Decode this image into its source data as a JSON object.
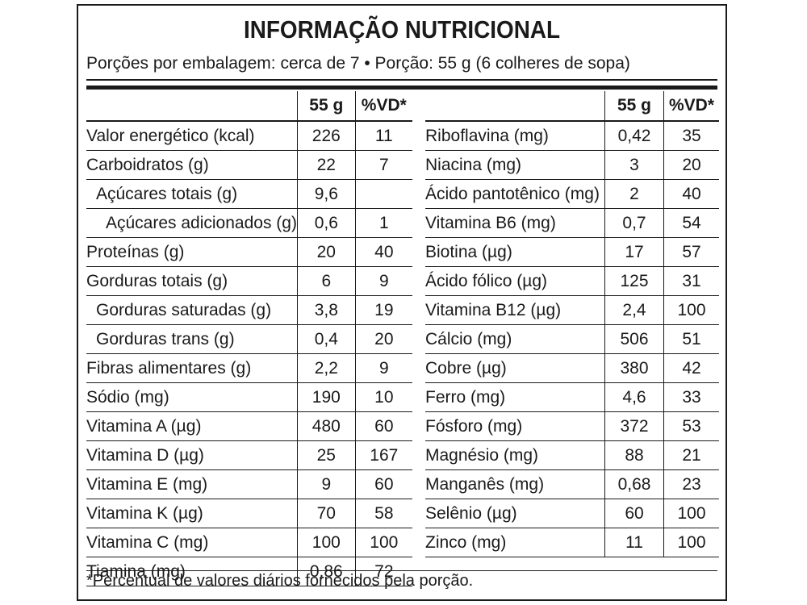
{
  "title": "INFORMAÇÃO NUTRICIONAL",
  "serving": "Porções por embalagem: cerca de 7 • Porção: 55 g (6 colheres de sopa)",
  "columns": {
    "amount": "55 g",
    "dv": "%VD*"
  },
  "left_rows": [
    {
      "name": "Valor energético (kcal)",
      "amount": "226",
      "dv": "11",
      "indent": 0
    },
    {
      "name": "Carboidratos (g)",
      "amount": "22",
      "dv": "7",
      "indent": 0
    },
    {
      "name": "Açúcares totais (g)",
      "amount": "9,6",
      "dv": "",
      "indent": 1
    },
    {
      "name": "Açúcares adicionados (g)",
      "amount": "0,6",
      "dv": "1",
      "indent": 2
    },
    {
      "name": "Proteínas (g)",
      "amount": "20",
      "dv": "40",
      "indent": 0
    },
    {
      "name": "Gorduras totais (g)",
      "amount": "6",
      "dv": "9",
      "indent": 0
    },
    {
      "name": "Gorduras saturadas (g)",
      "amount": "3,8",
      "dv": "19",
      "indent": 1
    },
    {
      "name": "Gorduras trans (g)",
      "amount": "0,4",
      "dv": "20",
      "indent": 1
    },
    {
      "name": "Fibras alimentares (g)",
      "amount": "2,2",
      "dv": "9",
      "indent": 0
    },
    {
      "name": "Sódio (mg)",
      "amount": "190",
      "dv": "10",
      "indent": 0
    },
    {
      "name": "Vitamina A (µg)",
      "amount": "480",
      "dv": "60",
      "indent": 0
    },
    {
      "name": "Vitamina D (µg)",
      "amount": "25",
      "dv": "167",
      "indent": 0
    },
    {
      "name": "Vitamina E (mg)",
      "amount": "9",
      "dv": "60",
      "indent": 0
    },
    {
      "name": "Vitamina K (µg)",
      "amount": "70",
      "dv": "58",
      "indent": 0
    },
    {
      "name": "Vitamina C (mg)",
      "amount": "100",
      "dv": "100",
      "indent": 0
    },
    {
      "name": "Tiamina (mg)",
      "amount": "0,86",
      "dv": "72",
      "indent": 0
    }
  ],
  "right_rows": [
    {
      "name": "Riboflavina (mg)",
      "amount": "0,42",
      "dv": "35"
    },
    {
      "name": "Niacina (mg)",
      "amount": "3",
      "dv": "20"
    },
    {
      "name": "Ácido pantotênico (mg)",
      "amount": "2",
      "dv": "40"
    },
    {
      "name": "Vitamina B6 (mg)",
      "amount": "0,7",
      "dv": "54"
    },
    {
      "name": "Biotina (µg)",
      "amount": "17",
      "dv": "57"
    },
    {
      "name": "Ácido fólico (µg)",
      "amount": "125",
      "dv": "31"
    },
    {
      "name": "Vitamina B12 (µg)",
      "amount": "2,4",
      "dv": "100"
    },
    {
      "name": "Cálcio (mg)",
      "amount": "506",
      "dv": "51"
    },
    {
      "name": "Cobre (µg)",
      "amount": "380",
      "dv": "42"
    },
    {
      "name": "Ferro (mg)",
      "amount": "4,6",
      "dv": "33"
    },
    {
      "name": "Fósforo (mg)",
      "amount": "372",
      "dv": "53"
    },
    {
      "name": "Magnésio (mg)",
      "amount": "88",
      "dv": "21"
    },
    {
      "name": "Manganês (mg)",
      "amount": "0,68",
      "dv": "23"
    },
    {
      "name": "Selênio (µg)",
      "amount": "60",
      "dv": "100"
    },
    {
      "name": "Zinco (mg)",
      "amount": "11",
      "dv": "100"
    }
  ],
  "footnote": "*Percentual de valores diários fornecidos pela porção."
}
